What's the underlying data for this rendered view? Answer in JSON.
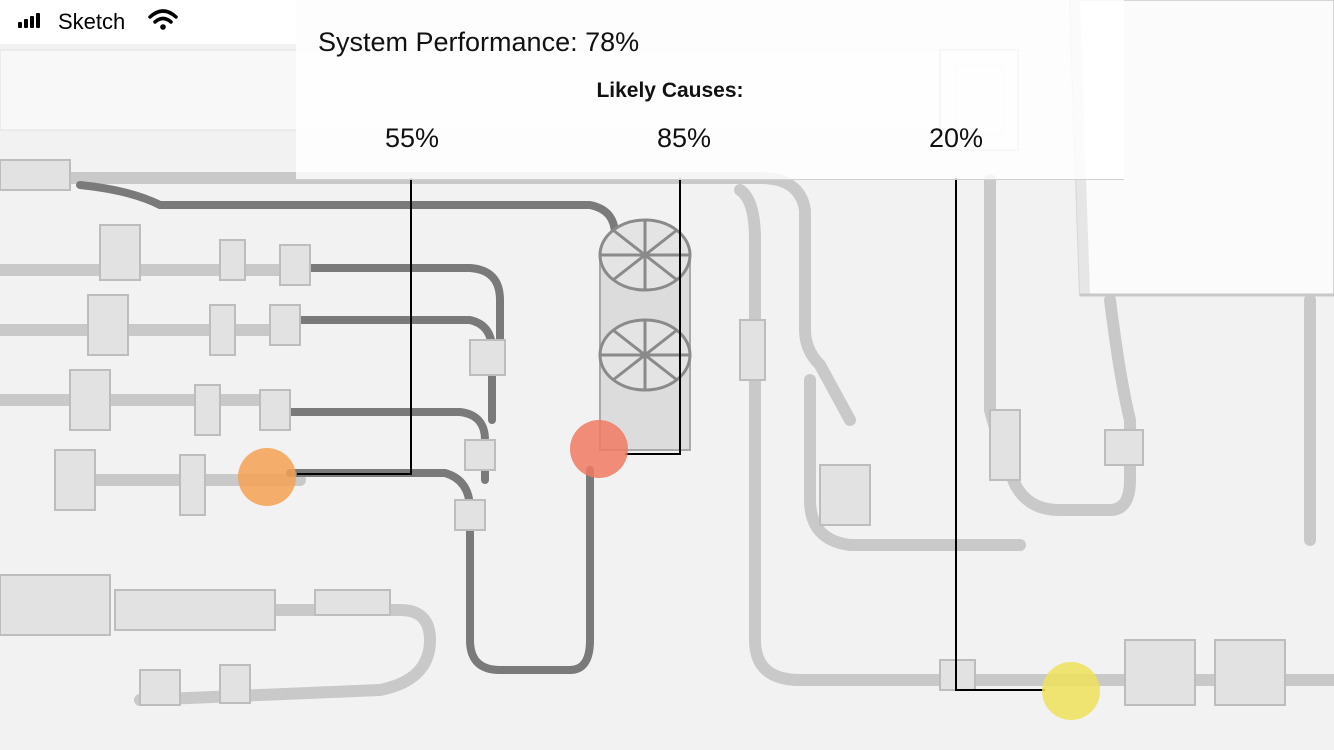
{
  "status_bar": {
    "carrier": "Sketch",
    "signal_icon": "signal-bars-icon",
    "wifi_icon": "wifi-icon"
  },
  "header": {
    "title": "System Performance: 78%",
    "causes_label": "Likely Causes:"
  },
  "causes": [
    {
      "percent": "55%",
      "color": "#f5a154"
    },
    {
      "percent": "85%",
      "color": "#f07a62"
    },
    {
      "percent": "20%",
      "color": "#efe05a"
    }
  ]
}
